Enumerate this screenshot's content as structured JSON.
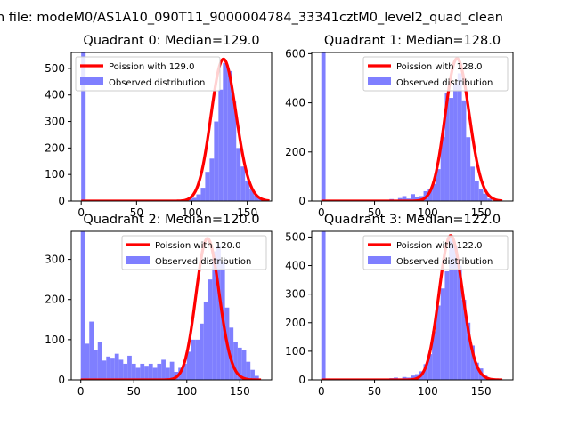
{
  "figure_title": "n file: modeM0/AS1A10_090T11_9000004784_33341cztM0_level2_quad_clean",
  "colors": {
    "line": "#ff0000",
    "hist": "#7f7fff",
    "axes": "#000000"
  },
  "chart_data": [
    {
      "type": "bar",
      "title": "Quadrant 0: Median=129.0",
      "legend_location": "upper-left",
      "legend_line": "Poission with 129.0",
      "legend_hist": "Observed distribution",
      "xlim": [
        -9,
        172
      ],
      "ylim": [
        0,
        560
      ],
      "xticks": [
        0,
        50,
        100,
        150
      ],
      "yticks": [
        0,
        100,
        200,
        300,
        400,
        500
      ],
      "poisson_mean": 129,
      "poisson_scale": 535,
      "bin_width": 4,
      "bins": [
        [
          0,
          4,
          560
        ],
        [
          4,
          8,
          5
        ],
        [
          88,
          92,
          3
        ],
        [
          92,
          96,
          5
        ],
        [
          96,
          100,
          8
        ],
        [
          100,
          104,
          12
        ],
        [
          104,
          108,
          25
        ],
        [
          108,
          112,
          50
        ],
        [
          112,
          116,
          110
        ],
        [
          116,
          120,
          160
        ],
        [
          120,
          124,
          300
        ],
        [
          124,
          128,
          420
        ],
        [
          128,
          132,
          520
        ],
        [
          132,
          136,
          490
        ],
        [
          136,
          140,
          375
        ],
        [
          140,
          144,
          200
        ],
        [
          144,
          148,
          130
        ],
        [
          148,
          152,
          75
        ],
        [
          152,
          156,
          45
        ],
        [
          156,
          160,
          22
        ],
        [
          160,
          164,
          10
        ],
        [
          164,
          168,
          5
        ]
      ]
    },
    {
      "type": "bar",
      "title": "Quadrant 1: Median=128.0",
      "legend_location": "upper-right",
      "legend_line": "Poission with 128.0",
      "legend_hist": "Observed distribution",
      "xlim": [
        -9,
        180
      ],
      "ylim": [
        0,
        605
      ],
      "xticks": [
        0,
        50,
        100,
        150
      ],
      "yticks": [
        0,
        200,
        400,
        600
      ],
      "poisson_mean": 128,
      "poisson_scale": 580,
      "bin_width": 4,
      "bins": [
        [
          0,
          4,
          605
        ],
        [
          4,
          8,
          5
        ],
        [
          64,
          68,
          8
        ],
        [
          68,
          72,
          5
        ],
        [
          72,
          76,
          12
        ],
        [
          76,
          80,
          20
        ],
        [
          80,
          84,
          10
        ],
        [
          84,
          88,
          28
        ],
        [
          88,
          92,
          15
        ],
        [
          92,
          96,
          20
        ],
        [
          96,
          100,
          40
        ],
        [
          100,
          104,
          50
        ],
        [
          104,
          108,
          70
        ],
        [
          108,
          112,
          130
        ],
        [
          112,
          116,
          260
        ],
        [
          116,
          120,
          440
        ],
        [
          120,
          124,
          420
        ],
        [
          124,
          128,
          480
        ],
        [
          128,
          132,
          520
        ],
        [
          132,
          136,
          410
        ],
        [
          136,
          140,
          260
        ],
        [
          140,
          144,
          140
        ],
        [
          144,
          148,
          80
        ],
        [
          148,
          152,
          50
        ],
        [
          152,
          156,
          30
        ],
        [
          156,
          160,
          10
        ]
      ]
    },
    {
      "type": "bar",
      "title": "Quadrant 2: Median=120.0",
      "legend_location": "upper-right",
      "legend_line": "Poission with 120.0",
      "legend_hist": "Observed distribution",
      "xlim": [
        -9,
        180
      ],
      "ylim": [
        0,
        370
      ],
      "xticks": [
        0,
        50,
        100,
        150
      ],
      "yticks": [
        0,
        100,
        200,
        300
      ],
      "poisson_mean": 120,
      "poisson_scale": 352,
      "bin_width": 4,
      "bins": [
        [
          0,
          4,
          370
        ],
        [
          4,
          8,
          90
        ],
        [
          8,
          12,
          145
        ],
        [
          12,
          16,
          75
        ],
        [
          16,
          20,
          95
        ],
        [
          20,
          24,
          48
        ],
        [
          24,
          28,
          58
        ],
        [
          28,
          32,
          55
        ],
        [
          32,
          36,
          65
        ],
        [
          36,
          40,
          50
        ],
        [
          40,
          44,
          40
        ],
        [
          44,
          48,
          60
        ],
        [
          48,
          52,
          40
        ],
        [
          52,
          56,
          30
        ],
        [
          56,
          60,
          40
        ],
        [
          60,
          64,
          35
        ],
        [
          64,
          68,
          40
        ],
        [
          68,
          72,
          30
        ],
        [
          72,
          76,
          40
        ],
        [
          76,
          80,
          50
        ],
        [
          80,
          84,
          30
        ],
        [
          84,
          88,
          45
        ],
        [
          88,
          92,
          20
        ],
        [
          92,
          96,
          30
        ],
        [
          96,
          100,
          40
        ],
        [
          100,
          104,
          70
        ],
        [
          104,
          108,
          100
        ],
        [
          108,
          112,
          100
        ],
        [
          112,
          116,
          140
        ],
        [
          116,
          120,
          195
        ],
        [
          120,
          124,
          250
        ],
        [
          124,
          128,
          320
        ],
        [
          128,
          132,
          335
        ],
        [
          132,
          136,
          295
        ],
        [
          136,
          140,
          180
        ],
        [
          140,
          144,
          130
        ],
        [
          144,
          148,
          95
        ],
        [
          148,
          152,
          80
        ],
        [
          152,
          156,
          75
        ],
        [
          156,
          160,
          45
        ],
        [
          160,
          164,
          25
        ],
        [
          164,
          168,
          10
        ]
      ]
    },
    {
      "type": "bar",
      "title": "Quadrant 3: Median=122.0",
      "legend_location": "upper-right",
      "legend_line": "Poission with 122.0",
      "legend_hist": "Observed distribution",
      "xlim": [
        -9,
        180
      ],
      "ylim": [
        0,
        520
      ],
      "xticks": [
        0,
        50,
        100,
        150
      ],
      "yticks": [
        0,
        100,
        200,
        300,
        400,
        500
      ],
      "poisson_mean": 122,
      "poisson_scale": 505,
      "bin_width": 4,
      "bins": [
        [
          0,
          4,
          520
        ],
        [
          4,
          8,
          5
        ],
        [
          64,
          68,
          6
        ],
        [
          68,
          72,
          8
        ],
        [
          72,
          76,
          5
        ],
        [
          76,
          80,
          10
        ],
        [
          80,
          84,
          8
        ],
        [
          84,
          88,
          15
        ],
        [
          88,
          92,
          20
        ],
        [
          92,
          96,
          30
        ],
        [
          96,
          100,
          55
        ],
        [
          100,
          104,
          90
        ],
        [
          104,
          108,
          170
        ],
        [
          108,
          112,
          260
        ],
        [
          112,
          116,
          320
        ],
        [
          116,
          120,
          380
        ],
        [
          120,
          124,
          500
        ],
        [
          124,
          128,
          470
        ],
        [
          128,
          132,
          400
        ],
        [
          132,
          136,
          280
        ],
        [
          136,
          140,
          200
        ],
        [
          140,
          144,
          120
        ],
        [
          144,
          148,
          60
        ],
        [
          148,
          152,
          40
        ],
        [
          152,
          156,
          15
        ]
      ]
    }
  ]
}
